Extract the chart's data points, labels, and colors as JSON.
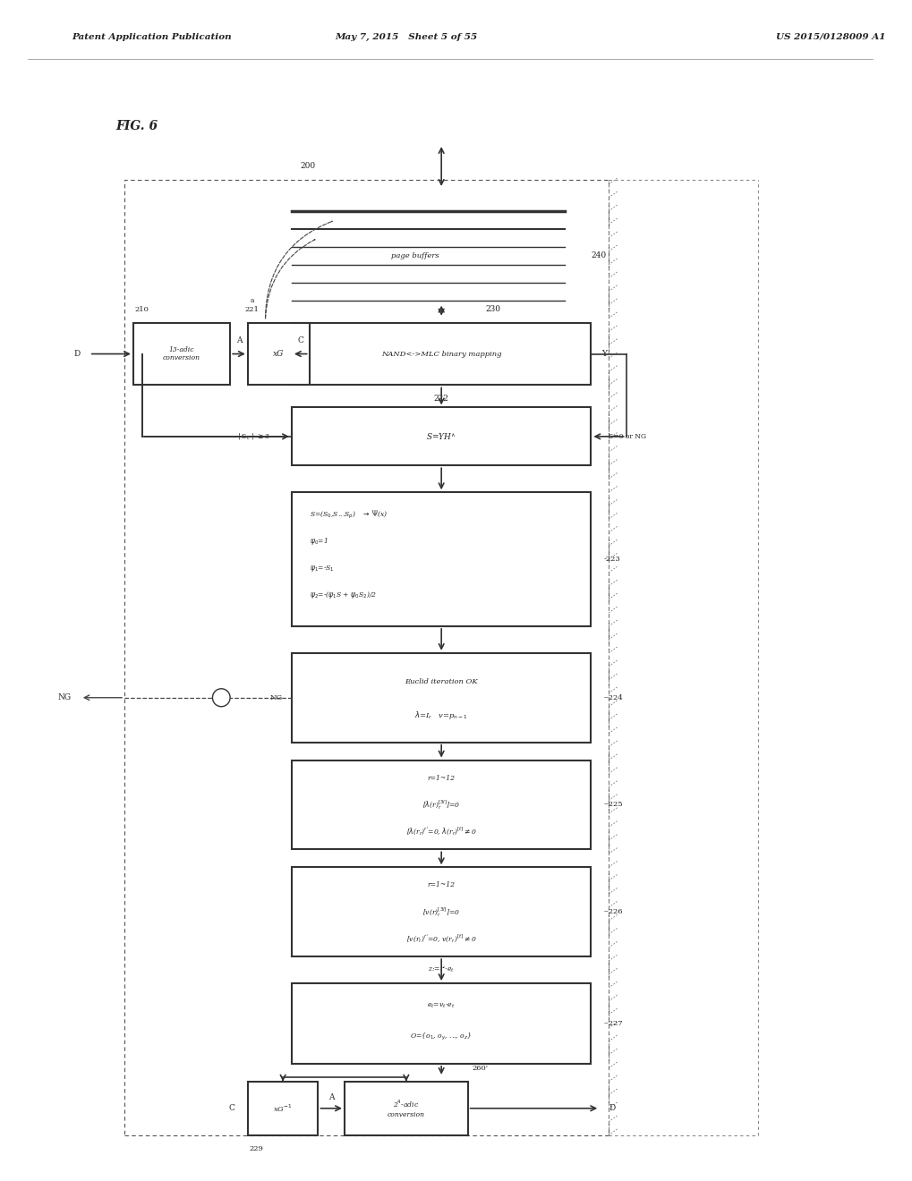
{
  "background_color": "#f5f5f5",
  "line_color": "#333333",
  "text_color": "#222222",
  "box_fill": "#ffffff",
  "header_left": "Patent Application Publication",
  "header_mid": "May 7, 2015   Sheet 5 of 55",
  "header_right": "US 2015/0128009 A1",
  "fig_label": "FIG. 6",
  "label_200": "200",
  "label_210": "210",
  "label_221": "221",
  "label_230": "230",
  "label_240": "240",
  "label_222": "222",
  "label_223": "-223",
  "label_224": "--224",
  "label_225": "--225",
  "label_226": "--226",
  "label_227": "--227",
  "label_229": "229",
  "label_260": "260'"
}
